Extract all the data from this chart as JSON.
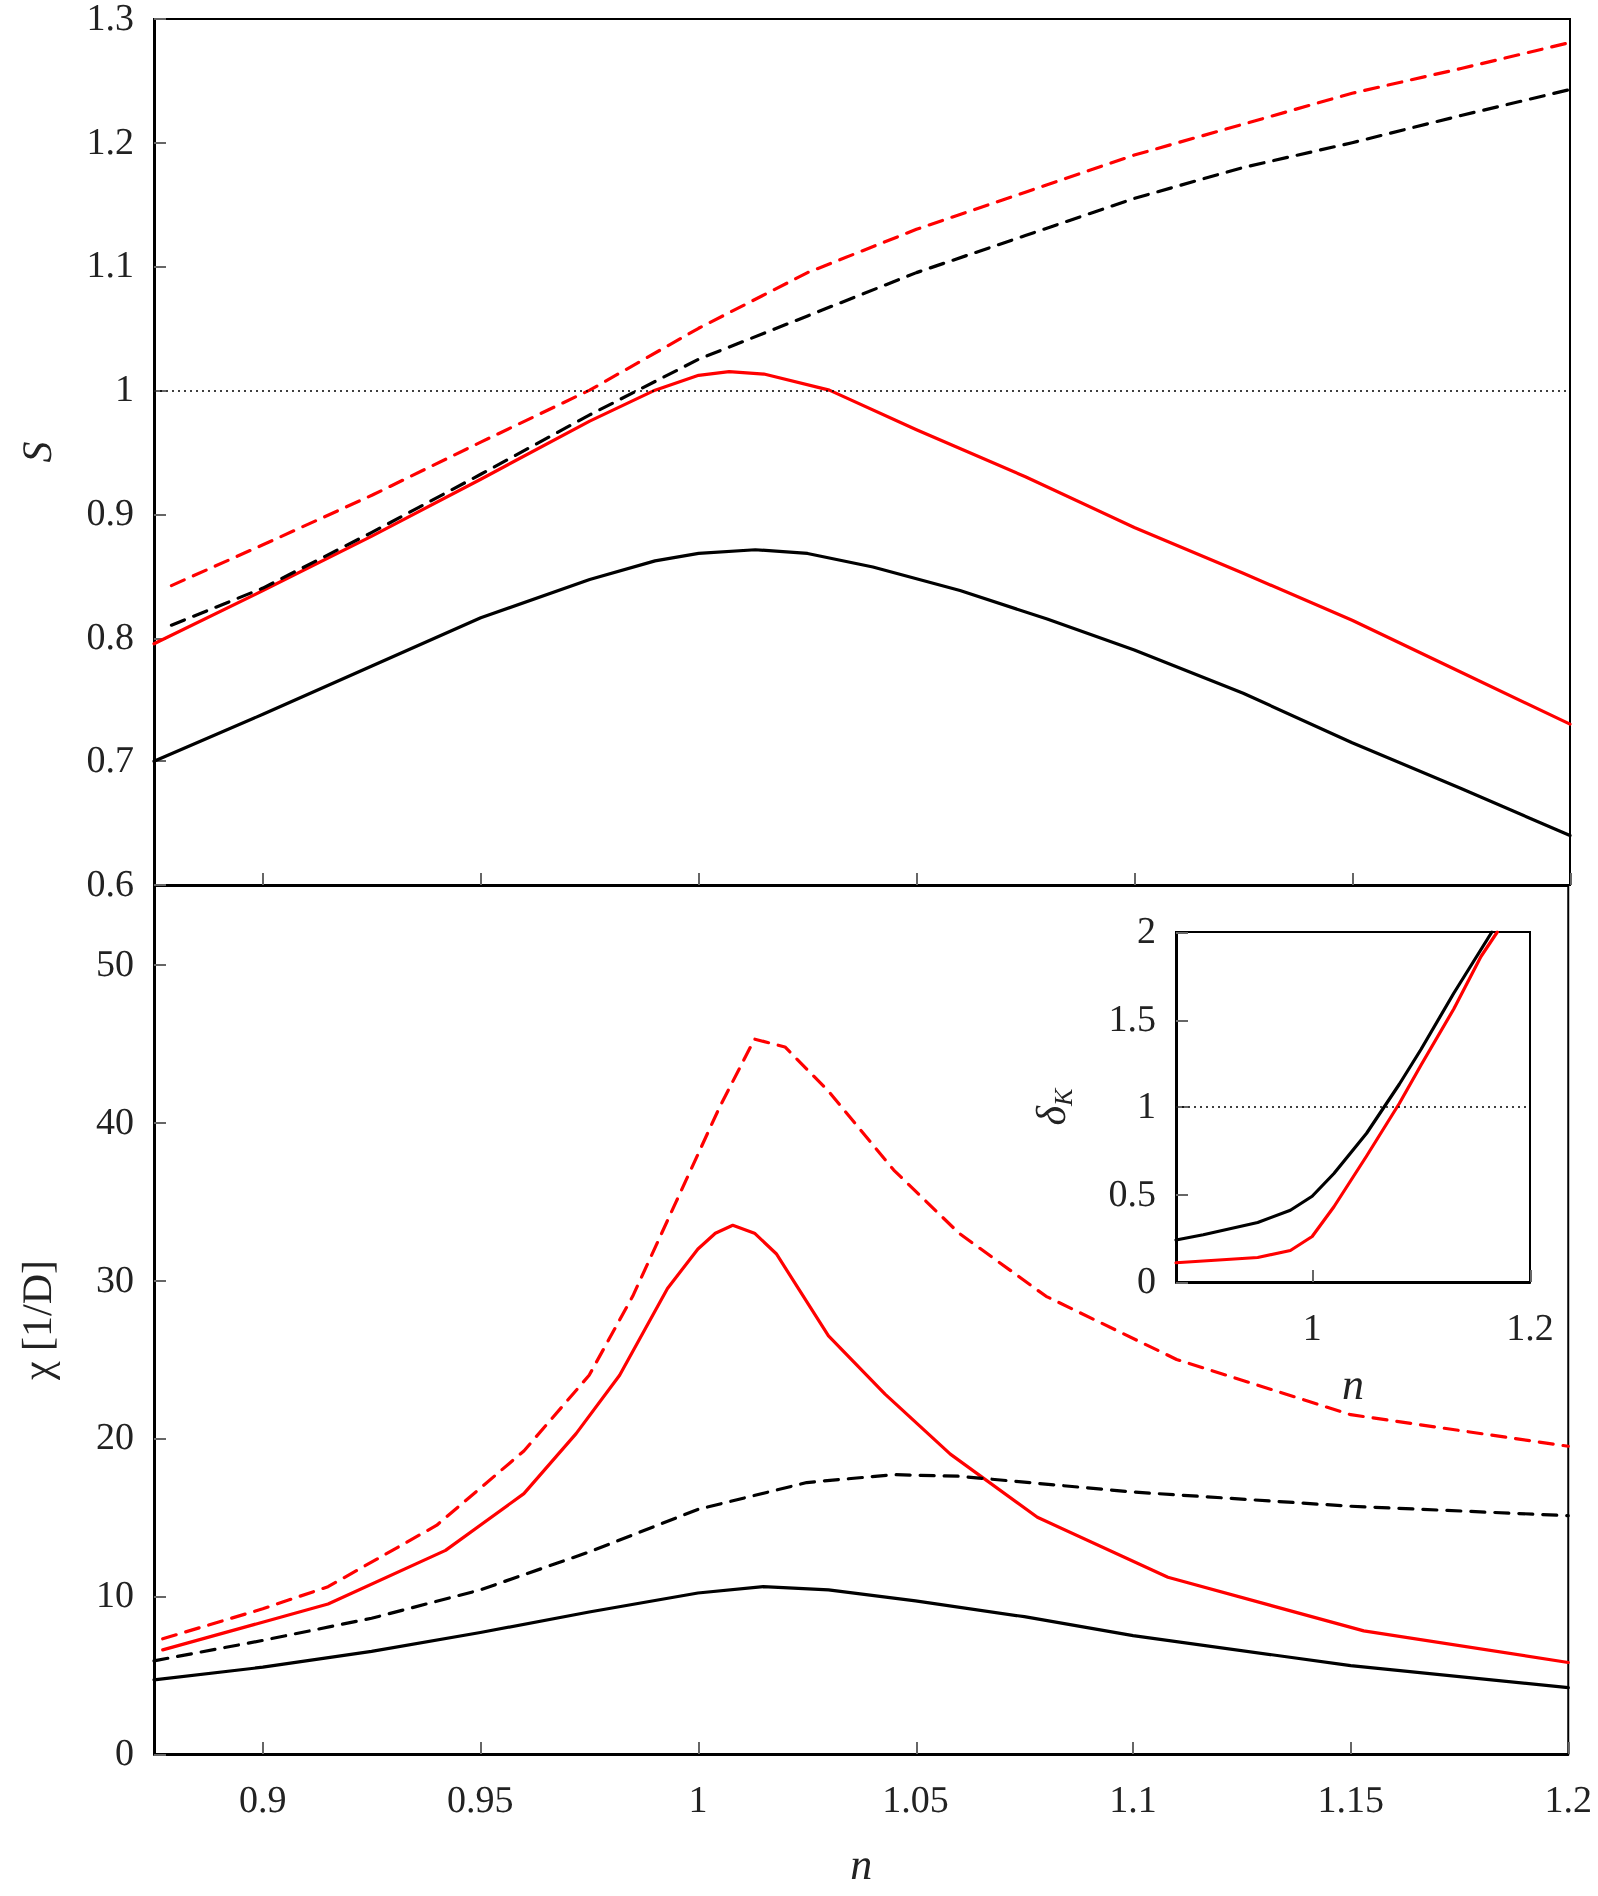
{
  "chart_data": [
    {
      "type": "line",
      "ylabel": "S",
      "xlim": [
        0.875,
        1.2
      ],
      "ylim": [
        0.6,
        1.3
      ],
      "xticks": [
        0.9,
        0.95,
        1,
        1.05,
        1.1,
        1.15,
        1.2
      ],
      "yticks": [
        0.6,
        0.7,
        0.8,
        0.9,
        1,
        1.1,
        1.2,
        1.3
      ],
      "tick_labels": "y",
      "ref_lines": [
        {
          "axis": "y",
          "value": 1,
          "color": "#000000",
          "line_style": "dotted"
        }
      ],
      "series": [
        {
          "color": "#ff0000",
          "line_style": "solid",
          "x": [
            0.875,
            0.9,
            0.925,
            0.95,
            0.975,
            0.99,
            1.0,
            1.007,
            1.015,
            1.03,
            1.05,
            1.075,
            1.1,
            1.125,
            1.15,
            1.175,
            1.2
          ],
          "values": [
            0.795,
            0.838,
            0.882,
            0.928,
            0.975,
            1.0,
            1.012,
            1.015,
            1.013,
            1.0,
            0.968,
            0.93,
            0.889,
            0.852,
            0.814,
            0.772,
            0.73
          ]
        },
        {
          "color": "#000000",
          "line_style": "solid",
          "x": [
            0.875,
            0.9,
            0.925,
            0.95,
            0.975,
            0.99,
            1.0,
            1.013,
            1.025,
            1.04,
            1.06,
            1.08,
            1.1,
            1.125,
            1.15,
            1.175,
            1.2
          ],
          "values": [
            0.7,
            0.738,
            0.777,
            0.816,
            0.847,
            0.862,
            0.868,
            0.871,
            0.868,
            0.857,
            0.838,
            0.815,
            0.79,
            0.755,
            0.715,
            0.678,
            0.64
          ]
        },
        {
          "color": "#000000",
          "line_style": "dashed",
          "x": [
            0.879,
            0.9,
            0.925,
            0.95,
            0.975,
            1.0,
            1.025,
            1.05,
            1.075,
            1.1,
            1.125,
            1.15,
            1.175,
            1.2
          ],
          "values": [
            0.81,
            0.84,
            0.885,
            0.932,
            0.98,
            1.025,
            1.06,
            1.095,
            1.125,
            1.155,
            1.18,
            1.2,
            1.222,
            1.243
          ]
        },
        {
          "color": "#ff0000",
          "line_style": "dashed",
          "x": [
            0.879,
            0.9,
            0.925,
            0.95,
            0.975,
            1.0,
            1.025,
            1.05,
            1.075,
            1.1,
            1.125,
            1.15,
            1.175,
            1.2
          ],
          "values": [
            0.842,
            0.875,
            0.915,
            0.958,
            1.0,
            1.05,
            1.095,
            1.13,
            1.16,
            1.19,
            1.215,
            1.24,
            1.26,
            1.281
          ]
        }
      ]
    },
    {
      "type": "line",
      "xlabel": "n",
      "ylabel": "χ [1/D]",
      "xlim": [
        0.875,
        1.2
      ],
      "ylim": [
        0,
        55
      ],
      "xticks": [
        0.9,
        0.95,
        1,
        1.05,
        1.1,
        1.15,
        1.2
      ],
      "yticks": [
        0,
        10,
        20,
        30,
        40,
        50
      ],
      "series": [
        {
          "color": "#ff0000",
          "line_style": "dashed",
          "x": [
            0.877,
            0.9,
            0.915,
            0.94,
            0.96,
            0.975,
            0.985,
            0.995,
            1.005,
            1.013,
            1.02,
            1.03,
            1.045,
            1.06,
            1.08,
            1.11,
            1.15,
            1.2
          ],
          "values": [
            7.3,
            9.2,
            10.6,
            14.5,
            19.2,
            24,
            29,
            35,
            41,
            45.3,
            44.8,
            42,
            37,
            33,
            29,
            25,
            21.5,
            19.5
          ]
        },
        {
          "color": "#ff0000",
          "line_style": "solid",
          "x": [
            0.877,
            0.915,
            0.942,
            0.96,
            0.972,
            0.982,
            0.993,
            1.0,
            1.004,
            1.008,
            1.013,
            1.018,
            1.03,
            1.043,
            1.058,
            1.078,
            1.108,
            1.153,
            1.2
          ],
          "values": [
            6.6,
            9.5,
            12.9,
            16.5,
            20.3,
            24,
            29.5,
            32,
            33,
            33.5,
            33,
            31.7,
            26.5,
            22.8,
            19,
            15,
            11.2,
            7.8,
            5.8
          ]
        },
        {
          "color": "#000000",
          "line_style": "dashed",
          "x": [
            0.875,
            0.9,
            0.925,
            0.95,
            0.975,
            1.0,
            1.025,
            1.045,
            1.06,
            1.1,
            1.15,
            1.2
          ],
          "values": [
            5.9,
            7.2,
            8.6,
            10.4,
            12.8,
            15.5,
            17.2,
            17.7,
            17.6,
            16.6,
            15.7,
            15.1
          ]
        },
        {
          "color": "#000000",
          "line_style": "solid",
          "x": [
            0.875,
            0.9,
            0.925,
            0.95,
            0.975,
            1.0,
            1.015,
            1.03,
            1.05,
            1.075,
            1.1,
            1.15,
            1.2
          ],
          "values": [
            4.7,
            5.5,
            6.5,
            7.7,
            9.0,
            10.2,
            10.6,
            10.4,
            9.7,
            8.7,
            7.5,
            5.6,
            4.2
          ]
        }
      ]
    },
    {
      "type": "line",
      "xlabel": "n",
      "ylabel": "δ$_{K}$",
      "xlim": [
        0.875,
        1.2
      ],
      "ylim": [
        0,
        2
      ],
      "xticks": [
        1,
        1.2
      ],
      "yticks": [
        0,
        0.5,
        1,
        1.5,
        2
      ],
      "ref_lines": [
        {
          "axis": "y",
          "value": 1,
          "color": "#000000",
          "line_style": "dotted"
        }
      ],
      "series": [
        {
          "color": "#000000",
          "line_style": "solid",
          "x": [
            0.875,
            0.9,
            0.95,
            0.98,
            1.0,
            1.02,
            1.05,
            1.08,
            1.1,
            1.13,
            1.165
          ],
          "values": [
            0.24,
            0.27,
            0.34,
            0.41,
            0.49,
            0.62,
            0.85,
            1.13,
            1.33,
            1.65,
            2.0
          ]
        },
        {
          "color": "#ff0000",
          "line_style": "solid",
          "x": [
            0.875,
            0.9,
            0.95,
            0.98,
            1.0,
            1.02,
            1.05,
            1.08,
            1.1,
            1.13,
            1.155,
            1.17
          ],
          "values": [
            0.11,
            0.12,
            0.14,
            0.18,
            0.26,
            0.43,
            0.72,
            1.02,
            1.24,
            1.56,
            1.86,
            2.0
          ]
        }
      ]
    }
  ]
}
